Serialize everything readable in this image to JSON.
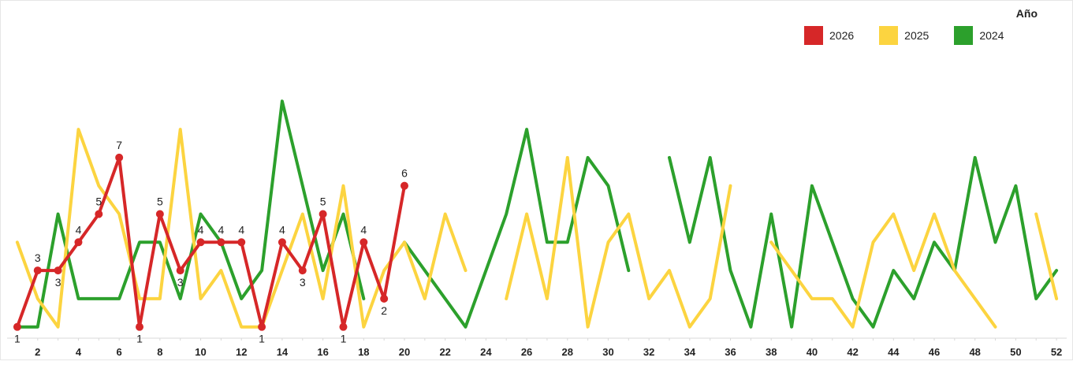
{
  "chart_data": {
    "type": "line",
    "legend_title": "Año",
    "legend_placement": "top-right",
    "grid": false,
    "x": [
      1,
      2,
      3,
      4,
      5,
      6,
      7,
      8,
      9,
      10,
      11,
      12,
      13,
      14,
      15,
      16,
      17,
      18,
      19,
      20,
      21,
      22,
      23,
      24,
      25,
      26,
      27,
      28,
      29,
      30,
      31,
      32,
      33,
      34,
      35,
      36,
      37,
      38,
      39,
      40,
      41,
      42,
      43,
      44,
      45,
      46,
      47,
      48,
      49,
      50,
      51,
      52
    ],
    "x_tick_labels": [
      "2",
      "4",
      "6",
      "8",
      "10",
      "12",
      "14",
      "16",
      "18",
      "20",
      "22",
      "24",
      "26",
      "28",
      "30",
      "32",
      "34",
      "36",
      "38",
      "40",
      "42",
      "44",
      "46",
      "48",
      "50",
      "52"
    ],
    "x_ticks": [
      2,
      4,
      6,
      8,
      10,
      12,
      14,
      16,
      18,
      20,
      22,
      24,
      26,
      28,
      30,
      32,
      34,
      36,
      38,
      40,
      42,
      44,
      46,
      48,
      50,
      52
    ],
    "xlim": [
      0.5,
      52.5
    ],
    "ylim": [
      0.6,
      10.6
    ],
    "series": [
      {
        "name": "2026",
        "color": "#d62728",
        "markers": true,
        "labels": true,
        "values": [
          1,
          3,
          3,
          4,
          5,
          7,
          1,
          5,
          3,
          4,
          4,
          4,
          1,
          4,
          3,
          5,
          1,
          4,
          2,
          6,
          null,
          null,
          null,
          null,
          null,
          null,
          null,
          null,
          null,
          null,
          null,
          null,
          null,
          null,
          null,
          null,
          null,
          null,
          null,
          null,
          null,
          null,
          null,
          null,
          null,
          null,
          null,
          null,
          null,
          null,
          null,
          null
        ]
      },
      {
        "name": "2025",
        "color": "#fcd440",
        "markers": false,
        "labels": false,
        "values": [
          4,
          2,
          1,
          8,
          6,
          5,
          2,
          2,
          8,
          2,
          3,
          1,
          1,
          3,
          5,
          2,
          6,
          1,
          3,
          4,
          2,
          5,
          3,
          null,
          2,
          5,
          2,
          7,
          1,
          4,
          5,
          2,
          3,
          1,
          2,
          6,
          null,
          4,
          3,
          2,
          2,
          1,
          4,
          5,
          3,
          5,
          3,
          2,
          1,
          null,
          5,
          2
        ]
      },
      {
        "name": "2024",
        "color": "#2ca02c",
        "markers": false,
        "labels": false,
        "values": [
          1,
          1,
          5,
          2,
          2,
          2,
          4,
          4,
          2,
          5,
          4,
          2,
          3,
          9,
          6,
          3,
          5,
          2,
          null,
          4,
          3,
          2,
          1,
          3,
          5,
          8,
          4,
          4,
          7,
          6,
          3,
          null,
          7,
          4,
          7,
          3,
          1,
          5,
          1,
          6,
          4,
          2,
          1,
          3,
          2,
          4,
          3,
          7,
          4,
          6,
          2,
          3
        ]
      }
    ]
  }
}
